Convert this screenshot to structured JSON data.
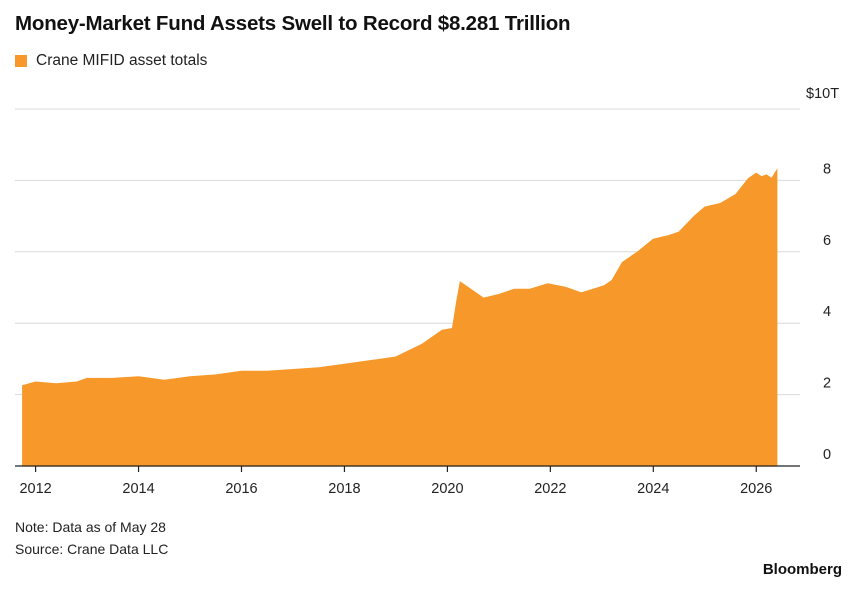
{
  "header": {
    "title": "Money-Market Fund Assets Swell to Record $8.281 Trillion"
  },
  "legend": {
    "label": "Crane MIFID asset totals"
  },
  "notes": {
    "note": "Note: Data as of May 28",
    "source": "Source: Crane Data LLC"
  },
  "brand": "Bloomberg",
  "colors": {
    "series": "#f7982a",
    "grid": "#d9d9d9",
    "axis": "#222222"
  },
  "chart_data": {
    "type": "area",
    "title": "Money-Market Fund Assets Swell to Record $8.281 Trillion",
    "xlabel": "",
    "ylabel": "",
    "y_unit_label": "$10T",
    "xlim": [
      2011.6,
      2026.85
    ],
    "ylim": [
      0,
      10
    ],
    "y_ticks": [
      0,
      2,
      4,
      6,
      8
    ],
    "x_ticks": [
      2012,
      2014,
      2016,
      2018,
      2020,
      2022,
      2024,
      2026
    ],
    "y_axis_position": "right",
    "grid": true,
    "legend_position": "top-left",
    "series": [
      {
        "name": "Crane MIFID asset totals",
        "x": [
          2011.75,
          2012.0,
          2012.4,
          2012.8,
          2013.0,
          2013.5,
          2014.0,
          2014.5,
          2015.0,
          2015.5,
          2016.0,
          2016.5,
          2017.0,
          2017.5,
          2018.0,
          2018.5,
          2019.0,
          2019.5,
          2019.9,
          2020.1,
          2020.18,
          2020.25,
          2020.45,
          2020.7,
          2021.0,
          2021.3,
          2021.6,
          2021.95,
          2022.3,
          2022.6,
          2022.95,
          2023.05,
          2023.2,
          2023.4,
          2023.7,
          2024.0,
          2024.3,
          2024.5,
          2024.8,
          2025.0,
          2025.3,
          2025.6,
          2025.85,
          2026.0,
          2026.1,
          2026.2,
          2026.3,
          2026.4
        ],
        "values": [
          2.25,
          2.35,
          2.3,
          2.35,
          2.45,
          2.45,
          2.5,
          2.4,
          2.5,
          2.55,
          2.65,
          2.65,
          2.7,
          2.75,
          2.85,
          2.95,
          3.05,
          3.4,
          3.8,
          3.85,
          4.6,
          5.15,
          4.95,
          4.7,
          4.8,
          4.95,
          4.95,
          5.1,
          5.0,
          4.85,
          5.0,
          5.05,
          5.2,
          5.7,
          6.0,
          6.35,
          6.45,
          6.55,
          7.0,
          7.25,
          7.35,
          7.6,
          8.05,
          8.2,
          8.1,
          8.15,
          8.05,
          8.281
        ]
      }
    ]
  }
}
